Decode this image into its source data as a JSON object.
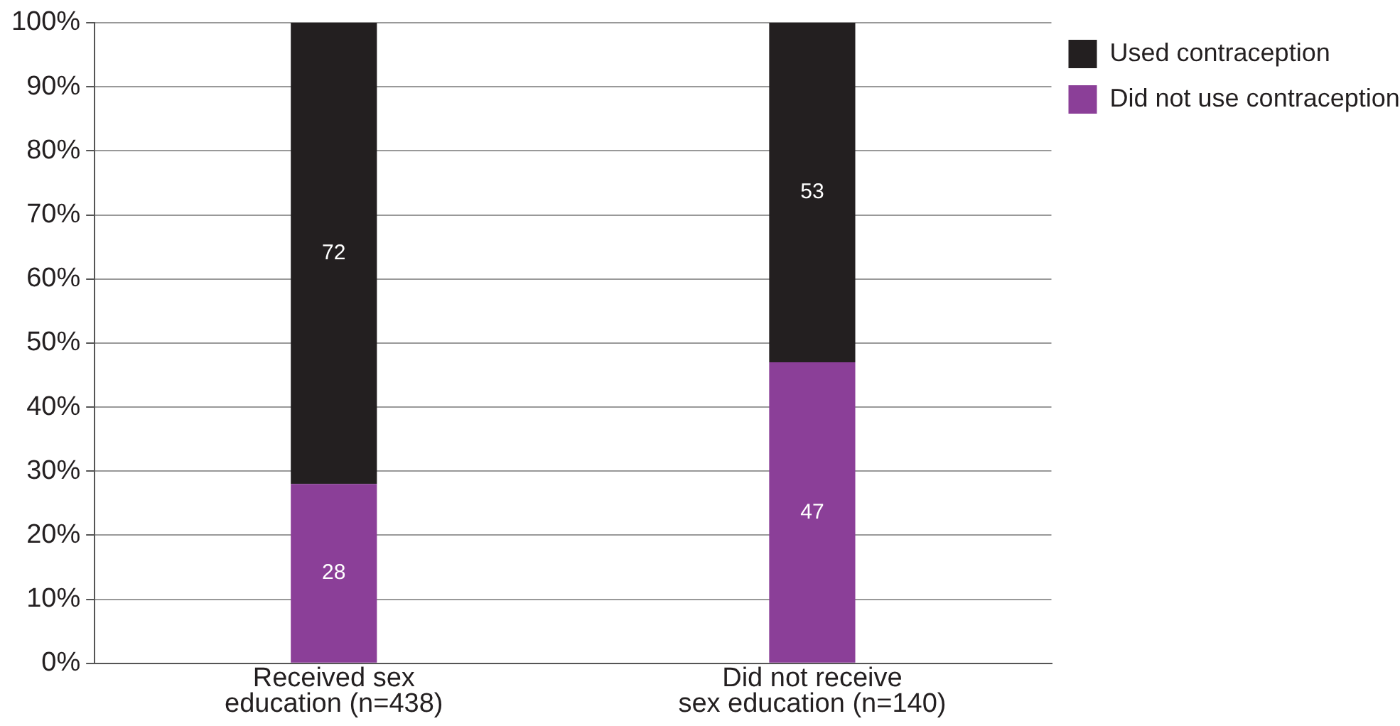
{
  "chart_data": {
    "type": "bar",
    "stacked": true,
    "categories": [
      "Received sex\neducation (n=438)",
      "Did not receive\nsex education (n=140)"
    ],
    "series": [
      {
        "name": "Did not use contraception",
        "color": "#8b3f98",
        "values": [
          28,
          47
        ]
      },
      {
        "name": "Used contraception",
        "color": "#231f20",
        "values": [
          72,
          53
        ]
      }
    ],
    "ylim": [
      0,
      100
    ],
    "yticks": [
      {
        "value": 0,
        "label": "0%"
      },
      {
        "value": 10,
        "label": "10%"
      },
      {
        "value": 20,
        "label": "20%"
      },
      {
        "value": 30,
        "label": "30%"
      },
      {
        "value": 40,
        "label": "40%"
      },
      {
        "value": 50,
        "label": "50%"
      },
      {
        "value": 60,
        "label": "60%"
      },
      {
        "value": 70,
        "label": "70%"
      },
      {
        "value": 80,
        "label": "80%"
      },
      {
        "value": 90,
        "label": "90%"
      },
      {
        "value": 100,
        "label": "100%"
      }
    ],
    "grid": "y",
    "legend": "top right",
    "data_labels": true
  }
}
